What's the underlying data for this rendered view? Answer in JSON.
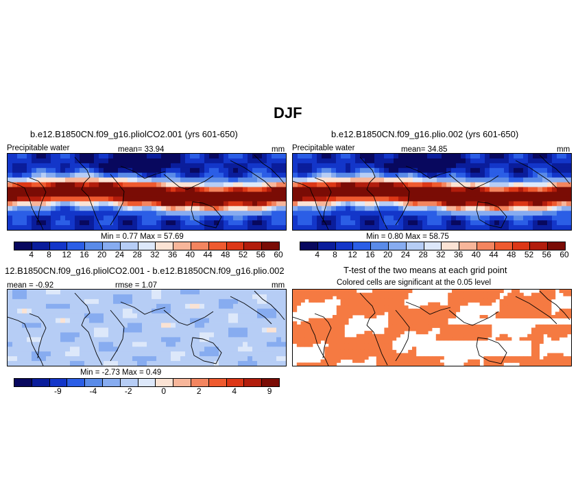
{
  "page_title": "DJF",
  "colors": {
    "precip": [
      "#08085e",
      "#0a1d9b",
      "#1336c9",
      "#2b5ee6",
      "#5a8be8",
      "#87acf0",
      "#b6cdf5",
      "#dde8fa",
      "#fbe3d4",
      "#f7b69a",
      "#f3855f",
      "#ee5a2f",
      "#dc3716",
      "#b21d0c",
      "#7a0c05"
    ],
    "diff": [
      "#08085e",
      "#0a1d9b",
      "#1336c9",
      "#2b5ee6",
      "#5a8be8",
      "#87acf0",
      "#b6cdf5",
      "#dde8fa",
      "#fbe3d4",
      "#f7b69a",
      "#f3855f",
      "#ee5a2f",
      "#dc3716",
      "#b21d0c",
      "#7a0c05"
    ],
    "ttest_fill": "#f57a42",
    "land": "#000000"
  },
  "panels": {
    "p1": {
      "title": "b.e12.B1850CN.f09_g16.pliolCO2.001 (yrs 601-650)",
      "variable": "Precipitable water",
      "mean_text": "mean=   33.94",
      "units": "mm",
      "stats_text": "Min =    0.77  Max =   57.69"
    },
    "p2": {
      "title": "b.e12.B1850CN.f09_g16.plio.002 (yrs 601-650)",
      "variable": "Precipitable water",
      "mean_text": "mean=   34.85",
      "units": "mm",
      "stats_text": "Min =    0.80  Max =   58.75"
    },
    "p3": {
      "title": "12.B1850CN.f09_g16.pliolCO2.001 - b.e12.B1850CN.f09_g16.plio.002",
      "mean_text": "mean =   -0.92",
      "rmse_text": "rmse =    1.07",
      "units": "mm",
      "stats_text": "Min =   -2.73  Max =    0.49"
    },
    "p4": {
      "title": "T-test of the two means at each grid point",
      "subtitle": "Colored cells are significant at the 0.05 level"
    }
  },
  "chart_data": [
    {
      "type": "heatmap",
      "title": "b.e12.B1850CN.f09_g16.pliolCO2.001 (yrs 601-650)",
      "variable": "Precipitable water",
      "units": "mm",
      "mean": 33.94,
      "min": 0.77,
      "max": 57.69,
      "colorbar_levels": [
        4,
        8,
        12,
        16,
        20,
        24,
        28,
        32,
        36,
        40,
        44,
        48,
        52,
        56,
        60
      ],
      "colorbar_labels": [
        "4",
        "8",
        "12",
        "16",
        "20",
        "24",
        "28",
        "32",
        "36",
        "40",
        "44",
        "48",
        "52",
        "56",
        "60"
      ]
    },
    {
      "type": "heatmap",
      "title": "b.e12.B1850CN.f09_g16.plio.002 (yrs 601-650)",
      "variable": "Precipitable water",
      "units": "mm",
      "mean": 34.85,
      "min": 0.8,
      "max": 58.75,
      "colorbar_levels": [
        4,
        8,
        12,
        16,
        20,
        24,
        28,
        32,
        36,
        40,
        44,
        48,
        52,
        56,
        60
      ],
      "colorbar_labels": [
        "4",
        "8",
        "12",
        "16",
        "20",
        "24",
        "28",
        "32",
        "36",
        "40",
        "44",
        "48",
        "52",
        "56",
        "60"
      ]
    },
    {
      "type": "heatmap",
      "title": "12.B1850CN.f09_g16.pliolCO2.001 - b.e12.B1850CN.f09_g16.plio.002",
      "units": "mm",
      "mean": -0.92,
      "rmse": 1.07,
      "min": -2.73,
      "max": 0.49,
      "colorbar_labels": [
        "-9",
        "-4",
        "-2",
        "0",
        "2",
        "4",
        "9"
      ]
    },
    {
      "type": "heatmap",
      "title": "T-test of the two means at each grid point",
      "subtitle": "Colored cells are significant at the 0.05 level"
    }
  ]
}
